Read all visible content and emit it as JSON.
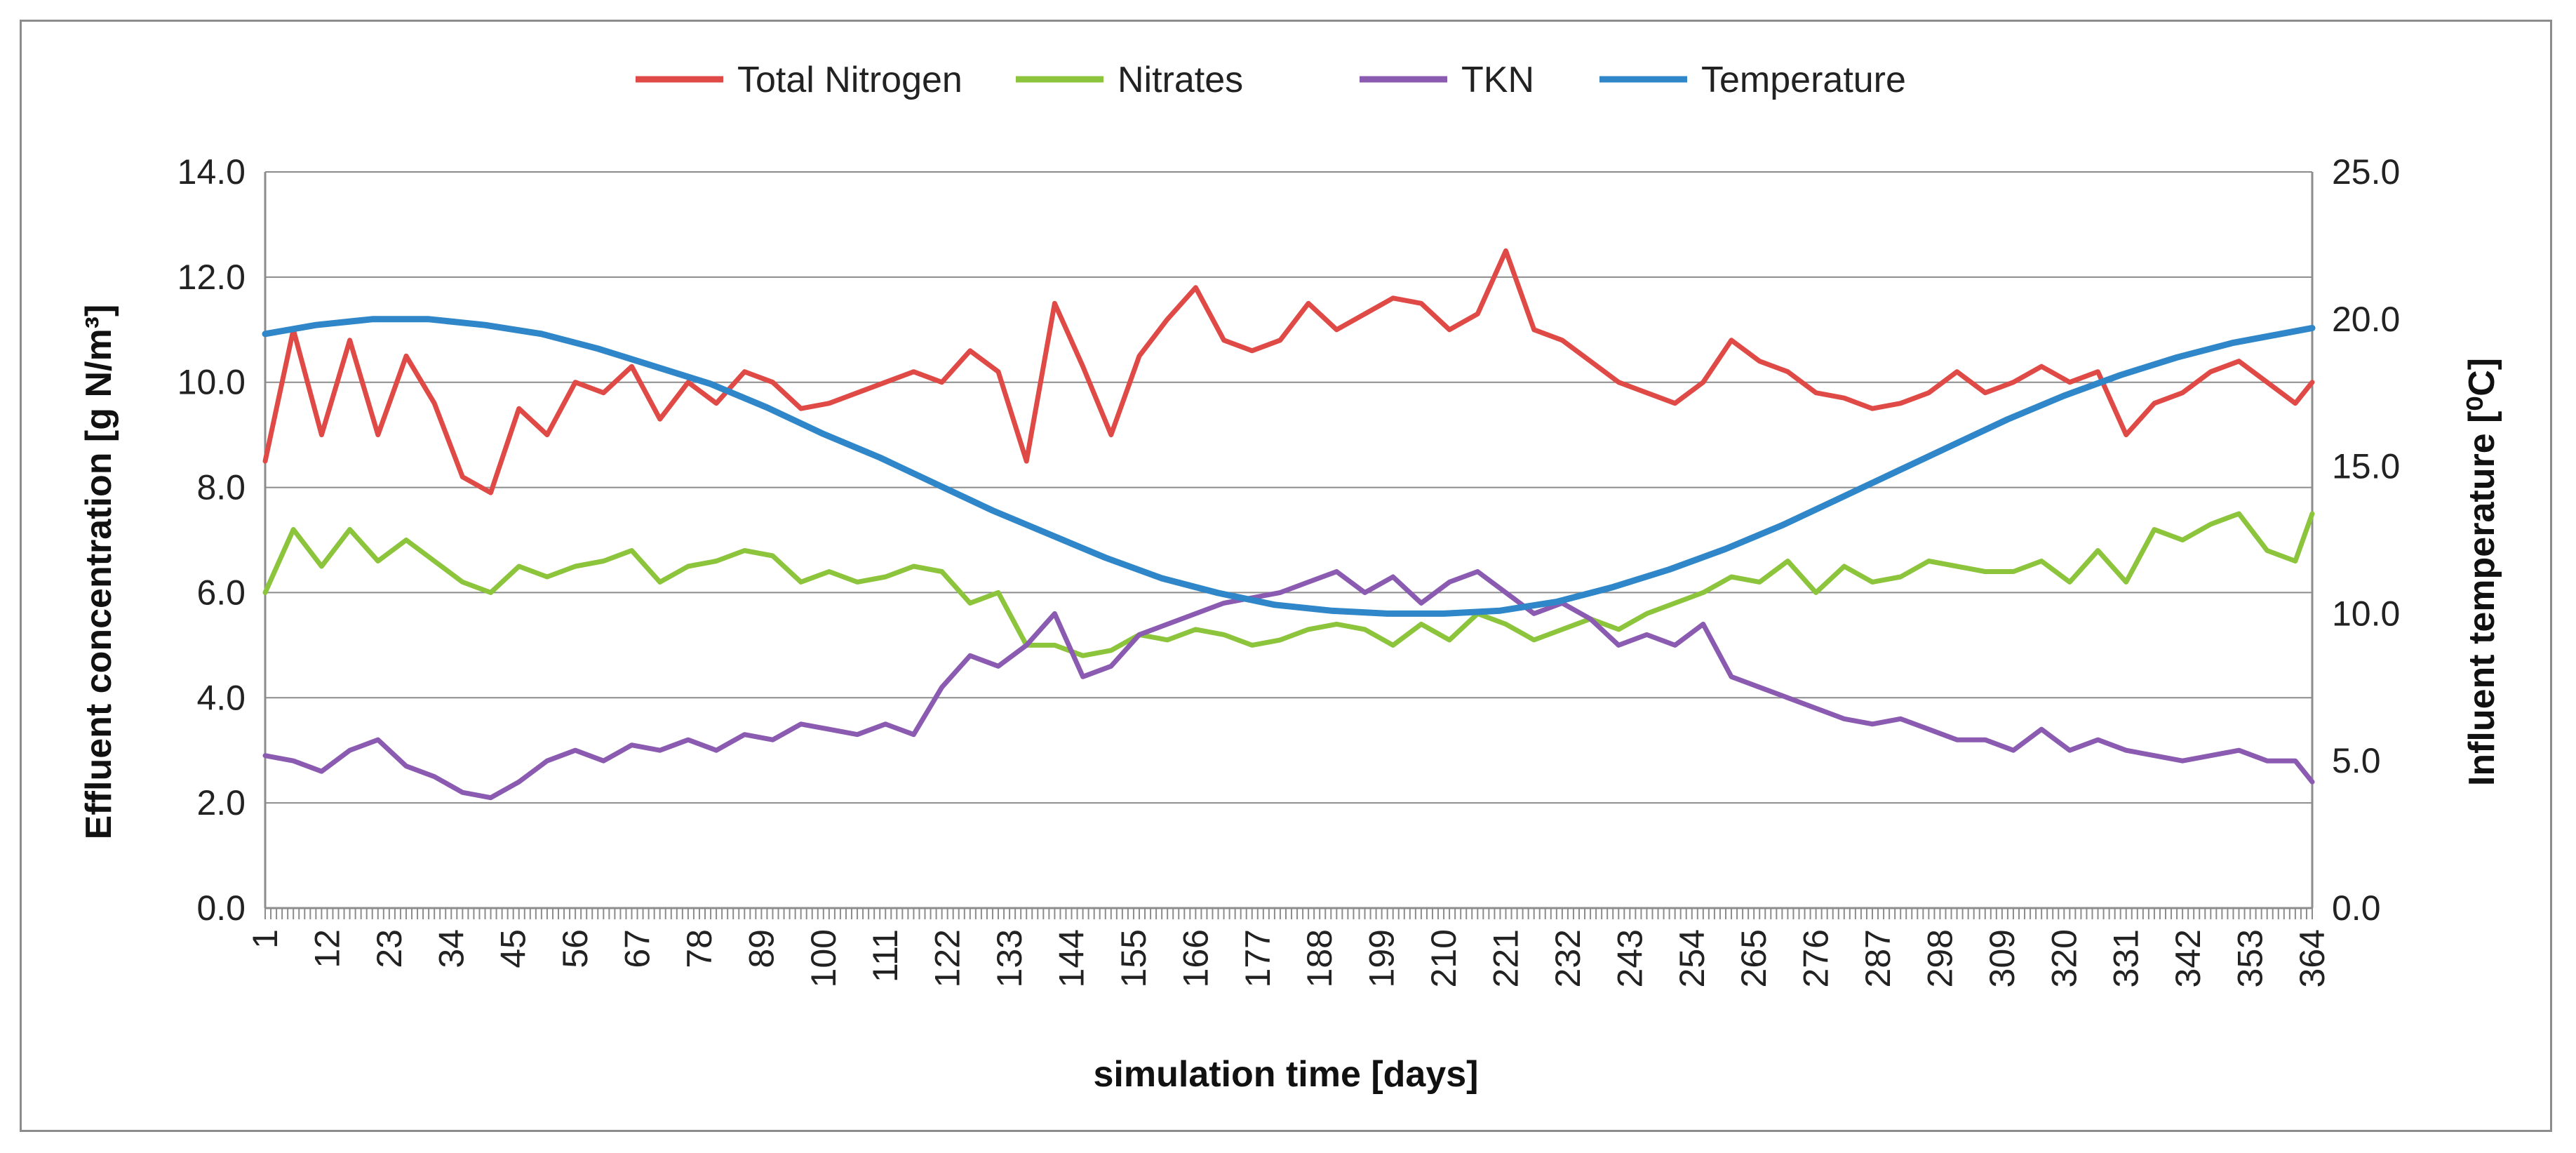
{
  "chart_data": {
    "type": "line",
    "xlabel": "simulation time [days]",
    "ylabel_left": "Effluent concentration [g N/m³]",
    "ylabel_right": "Influent temperature [⁰C]",
    "xlim": [
      1,
      364
    ],
    "x_tick_labels": [
      "1",
      "12",
      "23",
      "34",
      "45",
      "56",
      "67",
      "78",
      "89",
      "100",
      "111",
      "122",
      "133",
      "144",
      "155",
      "166",
      "177",
      "188",
      "199",
      "210",
      "221",
      "232",
      "243",
      "254",
      "265",
      "276",
      "287",
      "298",
      "309",
      "320",
      "331",
      "342",
      "353",
      "364"
    ],
    "ylim_left": [
      0,
      14
    ],
    "ylim_right": [
      0,
      25
    ],
    "y_ticks_left": [
      "0.0",
      "2.0",
      "4.0",
      "6.0",
      "8.0",
      "10.0",
      "12.0",
      "14.0"
    ],
    "y_ticks_right": [
      "0.0",
      "5.0",
      "10.0",
      "15.0",
      "20.0",
      "25.0"
    ],
    "grid": true,
    "legend_position": "top",
    "series": [
      {
        "name": "Total Nitrogen",
        "color": "#e04a46",
        "axis": "left",
        "x": [
          1,
          6,
          11,
          16,
          21,
          26,
          31,
          36,
          41,
          46,
          51,
          56,
          61,
          66,
          71,
          76,
          81,
          86,
          91,
          96,
          101,
          106,
          111,
          116,
          121,
          126,
          131,
          136,
          141,
          146,
          151,
          156,
          161,
          166,
          171,
          176,
          181,
          186,
          191,
          196,
          201,
          206,
          211,
          216,
          221,
          226,
          231,
          236,
          241,
          246,
          251,
          256,
          261,
          266,
          271,
          276,
          281,
          286,
          291,
          296,
          301,
          306,
          311,
          316,
          321,
          326,
          331,
          336,
          341,
          346,
          351,
          356,
          361,
          364
        ],
        "values": [
          8.5,
          11.0,
          9.0,
          10.8,
          9.0,
          10.5,
          9.6,
          8.2,
          7.9,
          9.5,
          9.0,
          10.0,
          9.8,
          10.3,
          9.3,
          10.0,
          9.6,
          10.2,
          10.0,
          9.5,
          9.6,
          9.8,
          10.0,
          10.2,
          10.0,
          10.6,
          10.2,
          8.5,
          11.5,
          10.3,
          9.0,
          10.5,
          11.2,
          11.8,
          10.8,
          10.6,
          10.8,
          11.5,
          11.0,
          11.3,
          11.6,
          11.5,
          11.0,
          11.3,
          12.5,
          11.0,
          10.8,
          10.4,
          10.0,
          9.8,
          9.6,
          10.0,
          10.8,
          10.4,
          10.2,
          9.8,
          9.7,
          9.5,
          9.6,
          9.8,
          10.2,
          9.8,
          10.0,
          10.3,
          10.0,
          10.2,
          9.0,
          9.6,
          9.8,
          10.2,
          10.4,
          10.0,
          9.6,
          10.0
        ]
      },
      {
        "name": "Nitrates",
        "color": "#8cc43c",
        "axis": "left",
        "x": [
          1,
          6,
          11,
          16,
          21,
          26,
          31,
          36,
          41,
          46,
          51,
          56,
          61,
          66,
          71,
          76,
          81,
          86,
          91,
          96,
          101,
          106,
          111,
          116,
          121,
          126,
          131,
          136,
          141,
          146,
          151,
          156,
          161,
          166,
          171,
          176,
          181,
          186,
          191,
          196,
          201,
          206,
          211,
          216,
          221,
          226,
          231,
          236,
          241,
          246,
          251,
          256,
          261,
          266,
          271,
          276,
          281,
          286,
          291,
          296,
          301,
          306,
          311,
          316,
          321,
          326,
          331,
          336,
          341,
          346,
          351,
          356,
          361,
          364
        ],
        "values": [
          6.0,
          7.2,
          6.5,
          7.2,
          6.6,
          7.0,
          6.6,
          6.2,
          6.0,
          6.5,
          6.3,
          6.5,
          6.6,
          6.8,
          6.2,
          6.5,
          6.6,
          6.8,
          6.7,
          6.2,
          6.4,
          6.2,
          6.3,
          6.5,
          6.4,
          5.8,
          6.0,
          5.0,
          5.0,
          4.8,
          4.9,
          5.2,
          5.1,
          5.3,
          5.2,
          5.0,
          5.1,
          5.3,
          5.4,
          5.3,
          5.0,
          5.4,
          5.1,
          5.6,
          5.4,
          5.1,
          5.3,
          5.5,
          5.3,
          5.6,
          5.8,
          6.0,
          6.3,
          6.2,
          6.6,
          6.0,
          6.5,
          6.2,
          6.3,
          6.6,
          6.5,
          6.4,
          6.4,
          6.6,
          6.2,
          6.8,
          6.2,
          7.2,
          7.0,
          7.3,
          7.5,
          6.8,
          6.6,
          7.5
        ]
      },
      {
        "name": "TKN",
        "color": "#8a5bb0",
        "axis": "left",
        "x": [
          1,
          6,
          11,
          16,
          21,
          26,
          31,
          36,
          41,
          46,
          51,
          56,
          61,
          66,
          71,
          76,
          81,
          86,
          91,
          96,
          101,
          106,
          111,
          116,
          121,
          126,
          131,
          136,
          141,
          146,
          151,
          156,
          161,
          166,
          171,
          176,
          181,
          186,
          191,
          196,
          201,
          206,
          211,
          216,
          221,
          226,
          231,
          236,
          241,
          246,
          251,
          256,
          261,
          266,
          271,
          276,
          281,
          286,
          291,
          296,
          301,
          306,
          311,
          316,
          321,
          326,
          331,
          336,
          341,
          346,
          351,
          356,
          361,
          364
        ],
        "values": [
          2.9,
          2.8,
          2.6,
          3.0,
          3.2,
          2.7,
          2.5,
          2.2,
          2.1,
          2.4,
          2.8,
          3.0,
          2.8,
          3.1,
          3.0,
          3.2,
          3.0,
          3.3,
          3.2,
          3.5,
          3.4,
          3.3,
          3.5,
          3.3,
          4.2,
          4.8,
          4.6,
          5.0,
          5.6,
          4.4,
          4.6,
          5.2,
          5.4,
          5.6,
          5.8,
          5.9,
          6.0,
          6.2,
          6.4,
          6.0,
          6.3,
          5.8,
          6.2,
          6.4,
          6.0,
          5.6,
          5.8,
          5.5,
          5.0,
          5.2,
          5.0,
          5.4,
          4.4,
          4.2,
          4.0,
          3.8,
          3.6,
          3.5,
          3.6,
          3.4,
          3.2,
          3.2,
          3.0,
          3.4,
          3.0,
          3.2,
          3.0,
          2.9,
          2.8,
          2.9,
          3.0,
          2.8,
          2.8,
          2.4
        ]
      },
      {
        "name": "Temperature",
        "color": "#2f86c8",
        "axis": "right",
        "x": [
          1,
          10,
          20,
          30,
          40,
          50,
          60,
          70,
          80,
          90,
          100,
          110,
          120,
          130,
          140,
          150,
          160,
          170,
          180,
          190,
          200,
          210,
          220,
          230,
          240,
          250,
          260,
          270,
          280,
          290,
          300,
          310,
          320,
          330,
          340,
          350,
          364
        ],
        "values": [
          19.5,
          19.8,
          20.0,
          20.0,
          19.8,
          19.5,
          19.0,
          18.4,
          17.8,
          17.0,
          16.1,
          15.3,
          14.4,
          13.5,
          12.7,
          11.9,
          11.2,
          10.7,
          10.3,
          10.1,
          10.0,
          10.0,
          10.1,
          10.4,
          10.9,
          11.5,
          12.2,
          13.0,
          13.9,
          14.8,
          15.7,
          16.6,
          17.4,
          18.1,
          18.7,
          19.2,
          19.7
        ]
      }
    ]
  }
}
